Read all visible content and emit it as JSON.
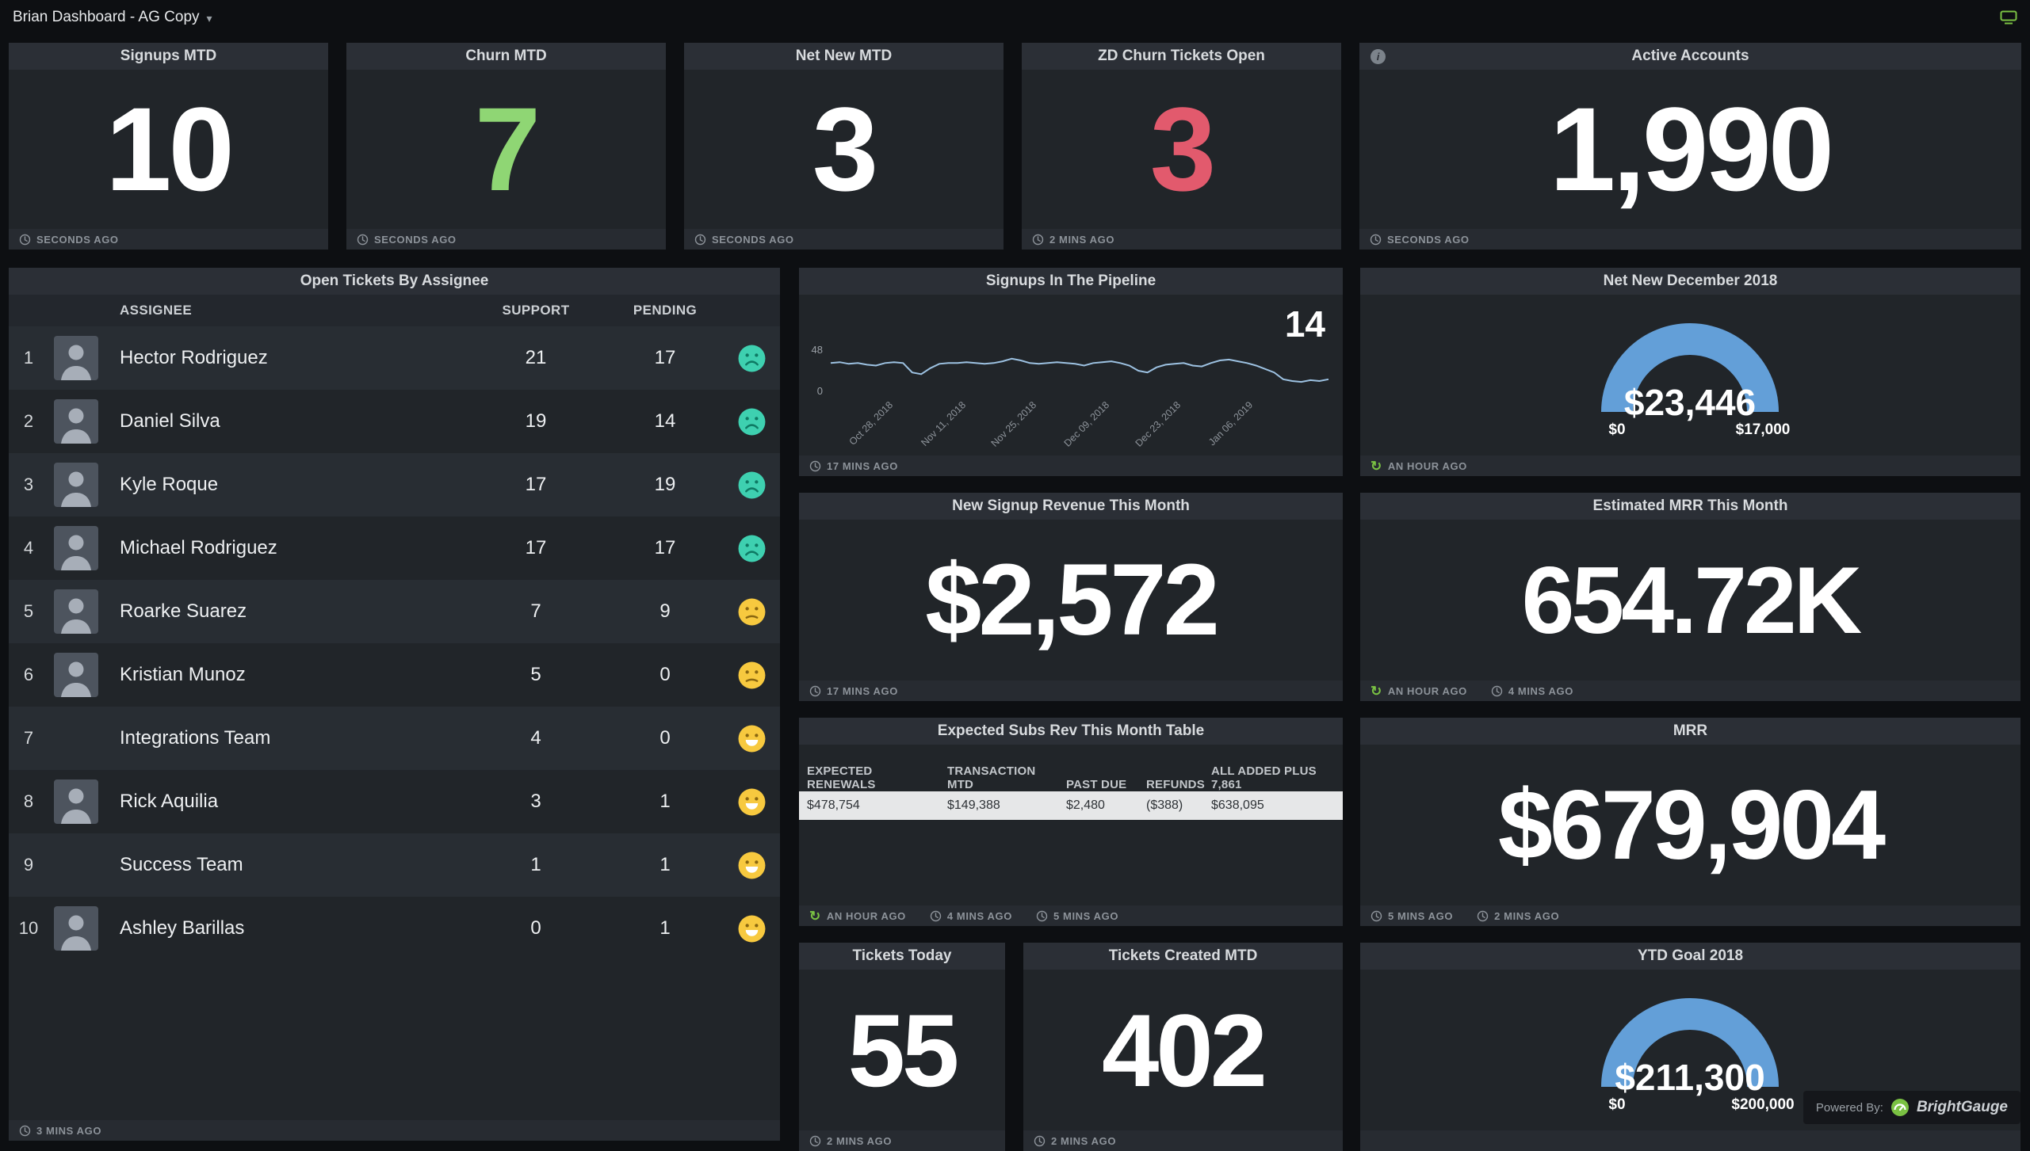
{
  "app": {
    "title": "Brian Dashboard - AG Copy",
    "powered_by_label": "Powered By:",
    "brand": "BrightGauge"
  },
  "colors": {
    "accent_green": "#8fd674",
    "accent_red": "#e25a6d",
    "gauge_blue": "#639fd8",
    "chart_line": "#9dc2e2",
    "brand_green": "#7ac143",
    "emoji_teal": "#3ed0b0",
    "emoji_yellow": "#f7c93f"
  },
  "kpis_top": [
    {
      "title": "Signups MTD",
      "value": "10",
      "color": "#ffffff",
      "timestamps": [
        {
          "icon": "clock",
          "text": "SECONDS AGO"
        }
      ]
    },
    {
      "title": "Churn MTD",
      "value": "7",
      "color": "#8fd674",
      "timestamps": [
        {
          "icon": "clock",
          "text": "SECONDS AGO"
        }
      ]
    },
    {
      "title": "Net New MTD",
      "value": "3",
      "color": "#ffffff",
      "timestamps": [
        {
          "icon": "clock",
          "text": "SECONDS AGO"
        }
      ]
    },
    {
      "title": "ZD Churn Tickets Open",
      "value": "3",
      "color": "#e25a6d",
      "timestamps": [
        {
          "icon": "clock",
          "text": "2 MINS AGO"
        }
      ]
    },
    {
      "title": "Active Accounts",
      "value": "1,990",
      "color": "#ffffff",
      "info": true,
      "timestamps": [
        {
          "icon": "clock",
          "text": "SECONDS AGO"
        }
      ]
    }
  ],
  "tickets_table": {
    "title": "Open Tickets By Assignee",
    "columns": [
      "ASSIGNEE",
      "SUPPORT",
      "PENDING"
    ],
    "rows": [
      {
        "rank": "1",
        "name": "Hector Rodriguez",
        "support": "21",
        "pending": "17",
        "mood": "sad",
        "has_avatar": true
      },
      {
        "rank": "2",
        "name": "Daniel Silva",
        "support": "19",
        "pending": "14",
        "mood": "sad",
        "has_avatar": true
      },
      {
        "rank": "3",
        "name": "Kyle Roque",
        "support": "17",
        "pending": "19",
        "mood": "sad",
        "has_avatar": true
      },
      {
        "rank": "4",
        "name": "Michael Rodriguez",
        "support": "17",
        "pending": "17",
        "mood": "sad",
        "has_avatar": true
      },
      {
        "rank": "5",
        "name": "Roarke Suarez",
        "support": "7",
        "pending": "9",
        "mood": "meh",
        "has_avatar": true
      },
      {
        "rank": "6",
        "name": "Kristian Munoz",
        "support": "5",
        "pending": "0",
        "mood": "meh",
        "has_avatar": true
      },
      {
        "rank": "7",
        "name": "Integrations Team",
        "support": "4",
        "pending": "0",
        "mood": "happy",
        "has_avatar": false
      },
      {
        "rank": "8",
        "name": "Rick Aquilia",
        "support": "3",
        "pending": "1",
        "mood": "happy",
        "has_avatar": true
      },
      {
        "rank": "9",
        "name": "Success Team",
        "support": "1",
        "pending": "1",
        "mood": "happy",
        "has_avatar": false
      },
      {
        "rank": "10",
        "name": "Ashley Barillas",
        "support": "0",
        "pending": "1",
        "mood": "happy",
        "has_avatar": true
      }
    ],
    "timestamps": [
      {
        "icon": "clock",
        "text": "3 MINS AGO"
      }
    ]
  },
  "pipeline": {
    "title": "Signups In The Pipeline",
    "current": "14",
    "timestamps": [
      {
        "icon": "clock",
        "text": "17 MINS AGO"
      }
    ]
  },
  "new_signup_revenue": {
    "title": "New Signup Revenue This Month",
    "value": "$2,572",
    "timestamps": [
      {
        "icon": "clock",
        "text": "17 MINS AGO"
      }
    ]
  },
  "expected_subs": {
    "title": "Expected Subs Rev This Month Table",
    "columns": [
      "EXPECTED RENEWALS",
      "TRANSACTION MTD",
      "PAST DUE",
      "REFUNDS",
      "ALL ADDED PLUS 7,861"
    ],
    "row": [
      "$478,754",
      "$149,388",
      "$2,480",
      "($388)",
      "$638,095"
    ],
    "timestamps": [
      {
        "icon": "refresh",
        "text": "AN HOUR AGO"
      },
      {
        "icon": "clock",
        "text": "4 MINS AGO"
      },
      {
        "icon": "clock",
        "text": "5 MINS AGO"
      }
    ]
  },
  "tickets_today": {
    "title": "Tickets Today",
    "value": "55",
    "timestamps": [
      {
        "icon": "clock",
        "text": "2 MINS AGO"
      }
    ]
  },
  "tickets_created_mtd": {
    "title": "Tickets Created MTD",
    "value": "402",
    "timestamps": [
      {
        "icon": "clock",
        "text": "2 MINS AGO"
      }
    ]
  },
  "net_new_gauge": {
    "title": "Net New December 2018",
    "value": "$23,446",
    "min_label": "$0",
    "max_label": "$17,000",
    "timestamps": [
      {
        "icon": "refresh",
        "text": "AN HOUR AGO"
      }
    ]
  },
  "estimated_mrr": {
    "title": "Estimated MRR This Month",
    "value": "654.72K",
    "timestamps": [
      {
        "icon": "refresh",
        "text": "AN HOUR AGO"
      },
      {
        "icon": "clock",
        "text": "4 MINS AGO"
      }
    ]
  },
  "mrr": {
    "title": "MRR",
    "value": "$679,904",
    "timestamps": [
      {
        "icon": "clock",
        "text": "5 MINS AGO"
      },
      {
        "icon": "clock",
        "text": "2 MINS AGO"
      }
    ]
  },
  "ytd_gauge": {
    "title": "YTD Goal 2018",
    "value": "$211,300",
    "min_label": "$0",
    "max_label": "$200,000",
    "timestamps": []
  },
  "chart_data": [
    {
      "type": "line",
      "title": "Signups In The Pipeline",
      "current_value": 14,
      "ylim": [
        0,
        48
      ],
      "y_ticks": [
        0,
        48
      ],
      "x_tick_labels": [
        "Oct 28, 2018",
        "Nov 11, 2018",
        "Nov 25, 2018",
        "Dec 09, 2018",
        "Dec 23, 2018",
        "Jan 06, 2019"
      ],
      "values": [
        33,
        34,
        32,
        33,
        31,
        30,
        33,
        34,
        33,
        22,
        20,
        27,
        32,
        33,
        33,
        34,
        33,
        32,
        33,
        35,
        38,
        36,
        33,
        32,
        33,
        34,
        33,
        32,
        30,
        33,
        34,
        35,
        33,
        30,
        24,
        22,
        28,
        31,
        32,
        33,
        30,
        29,
        33,
        36,
        37,
        35,
        33,
        30,
        26,
        22,
        14,
        12,
        11,
        13,
        12,
        14
      ]
    },
    {
      "type": "gauge",
      "title": "Net New December 2018",
      "value": 23446,
      "min": 0,
      "max": 17000,
      "value_label": "$23,446"
    },
    {
      "type": "gauge",
      "title": "YTD Goal 2018",
      "value": 211300,
      "min": 0,
      "max": 200000,
      "value_label": "$211,300"
    }
  ]
}
